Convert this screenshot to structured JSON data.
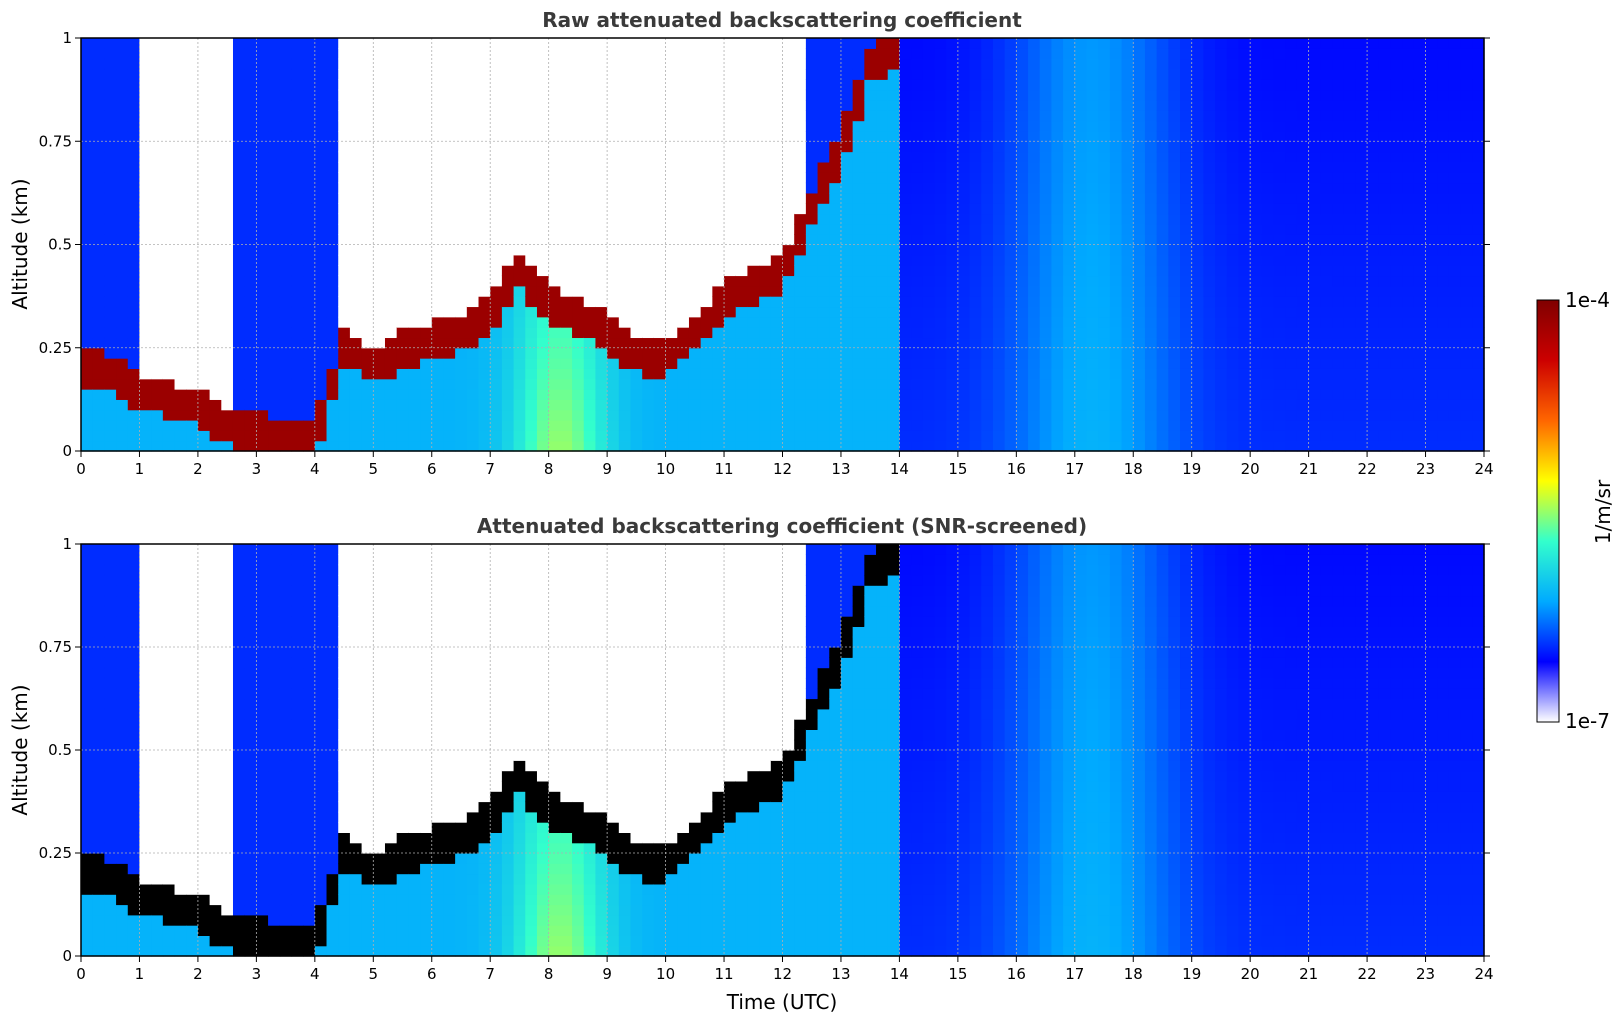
{
  "figure": {
    "xlabel": "Time (UTC)",
    "colorbar": {
      "label": "1/m/sr",
      "max_label": "1e-4",
      "min_label": "1e-7"
    },
    "colormap": [
      "#ffffff",
      "#0000ff",
      "#00aaff",
      "#33ffcc",
      "#ffff00",
      "#ff6600",
      "#cc0000",
      "#800000"
    ],
    "x_ticks": [
      "0",
      "1",
      "2",
      "3",
      "4",
      "5",
      "6",
      "7",
      "8",
      "9",
      "10",
      "11",
      "12",
      "13",
      "14",
      "15",
      "16",
      "17",
      "18",
      "19",
      "20",
      "21",
      "22",
      "23",
      "24"
    ],
    "y_ticks": [
      "0",
      "0.25",
      "0.5",
      "0.75",
      "1"
    ]
  },
  "chart_data": [
    {
      "type": "heatmap",
      "title": "Raw attenuated backscattering coefficient",
      "xlabel": "",
      "ylabel": "Altitude (km)",
      "xlim": [
        0,
        24
      ],
      "ylim": [
        0,
        1
      ],
      "grid": true,
      "scale": "log",
      "color_range": [
        1e-07,
        0.0001
      ],
      "layer_top_km": [
        {
          "t": 0.0,
          "z": 0.22
        },
        {
          "t": 0.5,
          "z": 0.2
        },
        {
          "t": 1.0,
          "z": 0.16
        },
        {
          "t": 1.5,
          "z": 0.14
        },
        {
          "t": 2.0,
          "z": 0.12
        },
        {
          "t": 2.5,
          "z": 0.08
        },
        {
          "t": 3.0,
          "z": 0.06
        },
        {
          "t": 4.0,
          "z": 0.05
        },
        {
          "t": 4.5,
          "z": 0.27
        },
        {
          "t": 5.0,
          "z": 0.22
        },
        {
          "t": 5.5,
          "z": 0.26
        },
        {
          "t": 6.0,
          "z": 0.28
        },
        {
          "t": 6.5,
          "z": 0.3
        },
        {
          "t": 7.0,
          "z": 0.35
        },
        {
          "t": 7.5,
          "z": 0.45
        },
        {
          "t": 8.0,
          "z": 0.38
        },
        {
          "t": 8.5,
          "z": 0.34
        },
        {
          "t": 9.0,
          "z": 0.3
        },
        {
          "t": 9.5,
          "z": 0.25
        },
        {
          "t": 10.0,
          "z": 0.24
        },
        {
          "t": 10.5,
          "z": 0.3
        },
        {
          "t": 11.0,
          "z": 0.38
        },
        {
          "t": 11.5,
          "z": 0.42
        },
        {
          "t": 12.0,
          "z": 0.45
        },
        {
          "t": 12.5,
          "z": 0.6
        },
        {
          "t": 13.0,
          "z": 0.75
        },
        {
          "t": 13.5,
          "z": 0.95
        },
        {
          "t": 14.0,
          "z": 1.0
        }
      ]
    },
    {
      "type": "heatmap",
      "title": "Attenuated backscattering coefficient (SNR-screened)",
      "xlabel": "Time (UTC)",
      "ylabel": "Altitude (km)",
      "xlim": [
        0,
        24
      ],
      "ylim": [
        0,
        1
      ],
      "grid": true,
      "scale": "log",
      "color_range": [
        1e-07,
        0.0001
      ],
      "layer_top_km": [
        {
          "t": 0.0,
          "z": 0.22
        },
        {
          "t": 0.5,
          "z": 0.2
        },
        {
          "t": 1.0,
          "z": 0.16
        },
        {
          "t": 1.5,
          "z": 0.14
        },
        {
          "t": 2.0,
          "z": 0.12
        },
        {
          "t": 2.5,
          "z": 0.08
        },
        {
          "t": 3.0,
          "z": 0.06
        },
        {
          "t": 4.0,
          "z": 0.05
        },
        {
          "t": 4.5,
          "z": 0.27
        },
        {
          "t": 5.0,
          "z": 0.22
        },
        {
          "t": 5.5,
          "z": 0.26
        },
        {
          "t": 6.0,
          "z": 0.28
        },
        {
          "t": 6.5,
          "z": 0.3
        },
        {
          "t": 7.0,
          "z": 0.35
        },
        {
          "t": 7.5,
          "z": 0.45
        },
        {
          "t": 8.0,
          "z": 0.38
        },
        {
          "t": 8.5,
          "z": 0.34
        },
        {
          "t": 9.0,
          "z": 0.3
        },
        {
          "t": 9.5,
          "z": 0.25
        },
        {
          "t": 10.0,
          "z": 0.24
        },
        {
          "t": 10.5,
          "z": 0.3
        },
        {
          "t": 11.0,
          "z": 0.38
        },
        {
          "t": 11.5,
          "z": 0.42
        },
        {
          "t": 12.0,
          "z": 0.45
        },
        {
          "t": 12.5,
          "z": 0.6
        },
        {
          "t": 13.0,
          "z": 0.75
        },
        {
          "t": 13.5,
          "z": 0.95
        },
        {
          "t": 14.0,
          "z": 1.0
        }
      ]
    }
  ]
}
